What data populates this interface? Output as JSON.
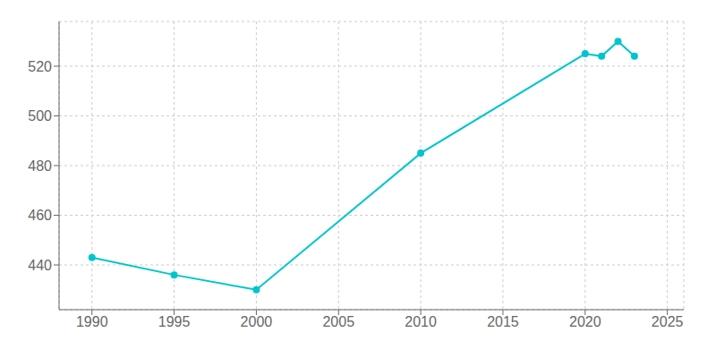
{
  "chart_data": {
    "type": "line",
    "x": [
      1990,
      1995,
      2000,
      2010,
      2020,
      2021,
      2022,
      2023
    ],
    "values": [
      443,
      436,
      430,
      485,
      525,
      524,
      530,
      524
    ],
    "color": "#00C5CD",
    "marker": "circle",
    "xlim": [
      1988,
      2026
    ],
    "ylim": [
      422,
      538
    ],
    "xticks": [
      1990,
      1995,
      2000,
      2005,
      2010,
      2015,
      2020,
      2025
    ],
    "yticks": [
      440,
      460,
      480,
      500,
      520
    ],
    "grid": true
  }
}
